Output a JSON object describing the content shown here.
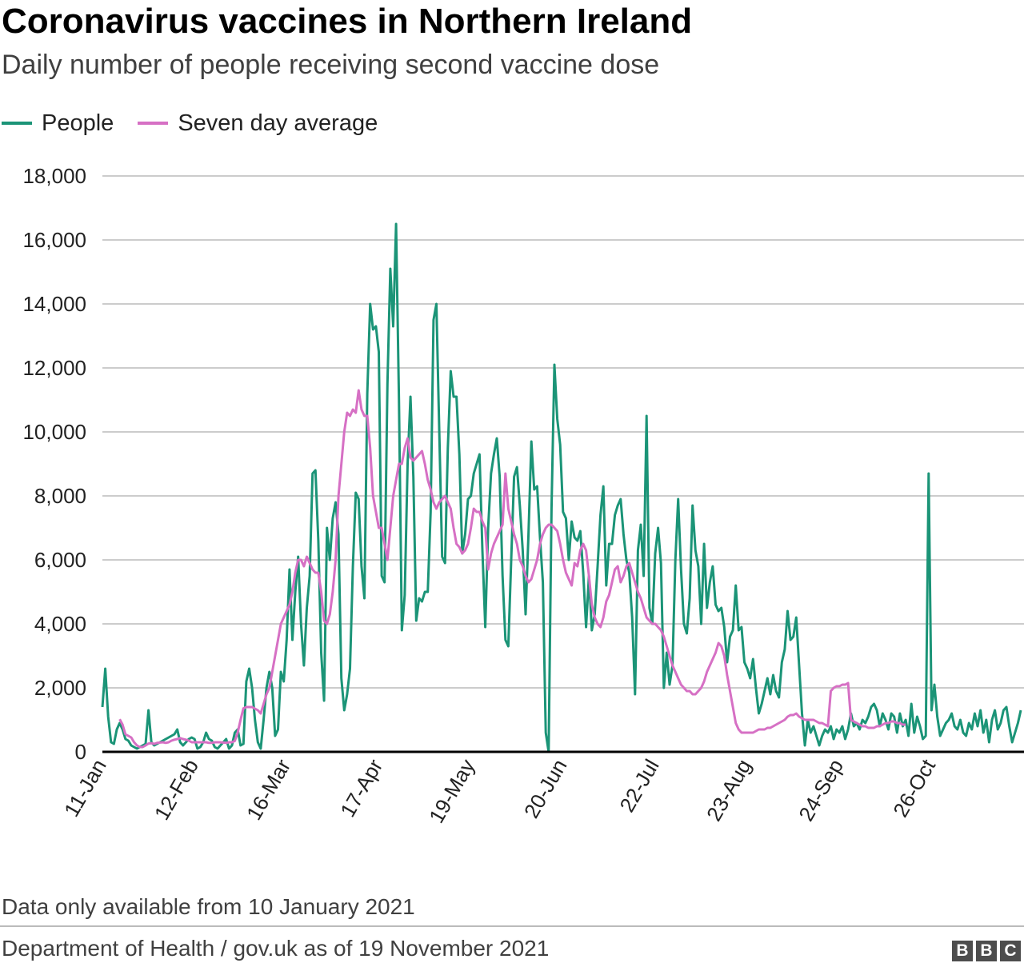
{
  "title": "Coronavirus vaccines in Northern Ireland",
  "subtitle": "Daily number of people receiving second vaccine dose",
  "note": "Data only available from 10 January 2021",
  "source": "Department of Health / gov.uk as of 19 November 2021",
  "logo": [
    "B",
    "B",
    "C"
  ],
  "colors": {
    "people": "#1b9477",
    "average": "#d670c4",
    "grid": "#cccccc",
    "axis": "#000000"
  },
  "chart_data": {
    "type": "line",
    "title": "Coronavirus vaccines in Northern Ireland",
    "subtitle": "Daily number of people receiving second vaccine dose",
    "x_start": "2021-01-10",
    "ylim": [
      0,
      18000
    ],
    "yticks": [
      0,
      2000,
      4000,
      6000,
      8000,
      10000,
      12000,
      14000,
      16000,
      18000
    ],
    "ytick_labels": [
      "0",
      "2,000",
      "4,000",
      "6,000",
      "8,000",
      "10,000",
      "12,000",
      "14,000",
      "16,000",
      "18,000"
    ],
    "xticks": [
      "2021-01-11",
      "2021-02-12",
      "2021-03-16",
      "2021-04-17",
      "2021-05-19",
      "2021-06-20",
      "2021-07-22",
      "2021-08-23",
      "2021-09-24",
      "2021-10-26"
    ],
    "xtick_labels": [
      "11-Jan",
      "12-Feb",
      "16-Mar",
      "17-Apr",
      "19-May",
      "20-Jun",
      "22-Jul",
      "23-Aug",
      "24-Sep",
      "26-Oct"
    ],
    "grid": "horizontal",
    "legend": "top-left",
    "series": [
      {
        "name": "People",
        "values": [
          1400,
          2600,
          1100,
          300,
          250,
          700,
          900,
          700,
          400,
          350,
          200,
          150,
          100,
          150,
          200,
          250,
          1300,
          300,
          200,
          250,
          300,
          350,
          400,
          450,
          500,
          550,
          700,
          300,
          200,
          300,
          400,
          450,
          400,
          100,
          150,
          300,
          600,
          400,
          350,
          150,
          100,
          200,
          300,
          400,
          100,
          200,
          600,
          700,
          200,
          250,
          2200,
          2600,
          2000,
          1000,
          300,
          100,
          1000,
          2000,
          2500,
          2000,
          500,
          700,
          2500,
          2200,
          3500,
          5700,
          3500,
          5000,
          6100,
          4000,
          2700,
          4500,
          5500,
          8700,
          8800,
          6600,
          3100,
          1600,
          7000,
          6000,
          7300,
          7800,
          6800,
          2300,
          1300,
          1800,
          2600,
          5800,
          8100,
          7900,
          5800,
          4800,
          11200,
          14000,
          13200,
          13300,
          12500,
          5500,
          5300,
          11500,
          15100,
          13300,
          16500,
          11000,
          3800,
          4900,
          9000,
          11100,
          8600,
          4100,
          4800,
          4700,
          5000,
          5000,
          7500,
          13500,
          14000,
          10000,
          6100,
          5900,
          9500,
          11900,
          11100,
          11100,
          9300,
          6200,
          6800,
          7900,
          8000,
          8700,
          9000,
          9300,
          6300,
          3900,
          7000,
          8700,
          9300,
          9800,
          8600,
          5500,
          3500,
          3300,
          6000,
          8600,
          8900,
          7700,
          6300,
          4300,
          6800,
          9700,
          8200,
          8300,
          6700,
          5300,
          600,
          0,
          7600,
          12100,
          10400,
          9600,
          7500,
          7300,
          6000,
          7200,
          6700,
          6600,
          6900,
          5600,
          3900,
          5500,
          3800,
          4300,
          5800,
          7400,
          8300,
          5200,
          6500,
          6500,
          7400,
          7700,
          7900,
          6800,
          6000,
          5600,
          4200,
          1800,
          6300,
          7100,
          5500,
          10500,
          4500,
          4000,
          6200,
          7000,
          5900,
          2000,
          3100,
          2100,
          2700,
          6000,
          7900,
          5700,
          4000,
          3700,
          4800,
          7700,
          6300,
          5800,
          4000,
          6500,
          4500,
          5300,
          5800,
          4600,
          4400,
          4500,
          3900,
          2800,
          3600,
          3800,
          5200,
          3800,
          3900,
          2800,
          2600,
          2300,
          2900,
          2000,
          1200,
          1500,
          1900,
          2300,
          1800,
          2400,
          1900,
          1700,
          2800,
          3200,
          4400,
          3500,
          3600,
          4200,
          2700,
          1200,
          200,
          1000,
          600,
          800,
          500,
          200,
          500,
          700,
          600,
          800,
          400,
          700,
          600,
          800,
          400,
          700,
          1200,
          800,
          900,
          700,
          1000,
          900,
          1100,
          1400,
          1500,
          1300,
          800,
          1200,
          1000,
          700,
          1200,
          1100,
          600,
          1200,
          800,
          1000,
          500,
          1500,
          600,
          1100,
          800,
          400,
          500,
          8700,
          1300,
          2100,
          1100,
          500,
          700,
          900,
          1000,
          1200,
          800,
          700,
          1000,
          600,
          500,
          900,
          700,
          1200,
          800,
          1300,
          600,
          1000,
          300,
          1000,
          1300,
          700,
          900,
          1300,
          1400,
          800,
          300,
          600,
          900,
          1300
        ]
      },
      {
        "name": "Seven day average",
        "start_index": 6,
        "values": [
          1020,
          850,
          550,
          500,
          450,
          300,
          200,
          150,
          150,
          200,
          260,
          270,
          250,
          280,
          290,
          300,
          280,
          300,
          350,
          380,
          400,
          430,
          400,
          380,
          350,
          300,
          300,
          300,
          300,
          300,
          300,
          280,
          280,
          300,
          300,
          300,
          290,
          280,
          300,
          300,
          340,
          600,
          1000,
          1360,
          1400,
          1400,
          1400,
          1350,
          1300,
          1200,
          1500,
          1800,
          2000,
          2500,
          3000,
          3500,
          4000,
          4200,
          4400,
          4600,
          5000,
          5600,
          6000,
          6000,
          5800,
          6100,
          5900,
          5700,
          5600,
          5600,
          5000,
          4100,
          4000,
          4300,
          5000,
          6000,
          8000,
          9000,
          10000,
          10600,
          10500,
          10700,
          10600,
          11300,
          10700,
          10500,
          10500,
          9500,
          8000,
          7500,
          7000,
          7000,
          6500,
          6000,
          7000,
          8000,
          8500,
          9000,
          9000,
          9500,
          9800,
          9200,
          9100,
          9200,
          9300,
          9400,
          9000,
          8500,
          8200,
          7800,
          7600,
          7800,
          7900,
          8000,
          7800,
          7600,
          7000,
          6500,
          6400,
          6200,
          6300,
          6500,
          7000,
          7600,
          7500,
          7500,
          7200,
          7000,
          5700,
          6200,
          6500,
          6700,
          6900,
          7100,
          8700,
          7600,
          7200,
          6800,
          6500,
          6000,
          5800,
          5500,
          5300,
          5400,
          5700,
          6000,
          6500,
          6800,
          7000,
          7100,
          7100,
          7000,
          6900,
          6500,
          6000,
          5600,
          5400,
          5200,
          5900,
          5800,
          6300,
          6500,
          6300,
          5500,
          4600,
          4200,
          4000,
          3900,
          4200,
          4700,
          4900,
          5300,
          5700,
          5800,
          5300,
          5500,
          5800,
          5900,
          5600,
          5300,
          5000,
          4800,
          4500,
          4200,
          4100,
          4000,
          4000,
          3900,
          3800,
          3600,
          3300,
          3000,
          2700,
          2500,
          2300,
          2100,
          2000,
          1900,
          1900,
          1800,
          1800,
          1900,
          2000,
          2200,
          2500,
          2700,
          2900,
          3100,
          3400,
          3300,
          3000,
          2400,
          1900,
          1400,
          900,
          700,
          600,
          600,
          600,
          600,
          600,
          650,
          700,
          700,
          700,
          750,
          750,
          800,
          850,
          900,
          950,
          1000,
          1100,
          1150,
          1150,
          1200,
          1100,
          1050,
          1000,
          1000,
          1000,
          1000,
          950,
          900,
          900,
          850,
          800,
          1900,
          2000,
          2050,
          2050,
          2100,
          2100,
          2150,
          1000,
          950,
          900,
          850,
          800,
          800,
          750,
          750,
          750,
          800,
          800,
          850,
          900,
          900,
          950,
          950,
          900,
          900,
          850,
          850
        ]
      }
    ]
  }
}
